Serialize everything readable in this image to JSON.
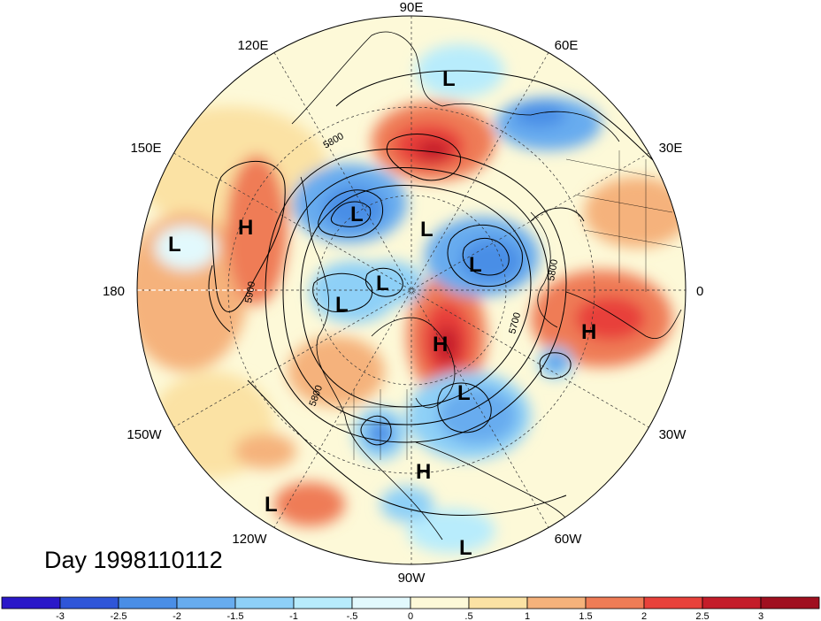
{
  "title": "Day 1998110112",
  "map": {
    "projection": "polar stereographic (Northern Hemisphere)",
    "longitude_labels": [
      "90E",
      "60E",
      "30E",
      "0",
      "30W",
      "60W",
      "90W",
      "120W",
      "150W",
      "180",
      "150E",
      "120E"
    ],
    "contour_labels": [
      "5800",
      "5900",
      "5700",
      "5800",
      "5800"
    ],
    "pressure_centers": [
      {
        "type": "L"
      },
      {
        "type": "L"
      },
      {
        "type": "L"
      },
      {
        "type": "L"
      },
      {
        "type": "L"
      },
      {
        "type": "L"
      },
      {
        "type": "L"
      },
      {
        "type": "L"
      },
      {
        "type": "L"
      },
      {
        "type": "L"
      },
      {
        "type": "H"
      },
      {
        "type": "H"
      },
      {
        "type": "H"
      },
      {
        "type": "H"
      }
    ]
  },
  "colorbar": {
    "tick_labels": [
      "-3",
      "-2.5",
      "-2",
      "-1.5",
      "-1",
      "-.5",
      "0",
      ".5",
      "1",
      "1.5",
      "2",
      "2.5",
      "3"
    ],
    "colors": [
      "#2a18c8",
      "#2f56d8",
      "#4a8ee6",
      "#67acef",
      "#8ed0f7",
      "#b8ecfc",
      "#e2f9fd",
      "#fdf9d8",
      "#fbe2a4",
      "#f5b27b",
      "#ef7c56",
      "#e8413b",
      "#c41d2a",
      "#a01020"
    ]
  }
}
